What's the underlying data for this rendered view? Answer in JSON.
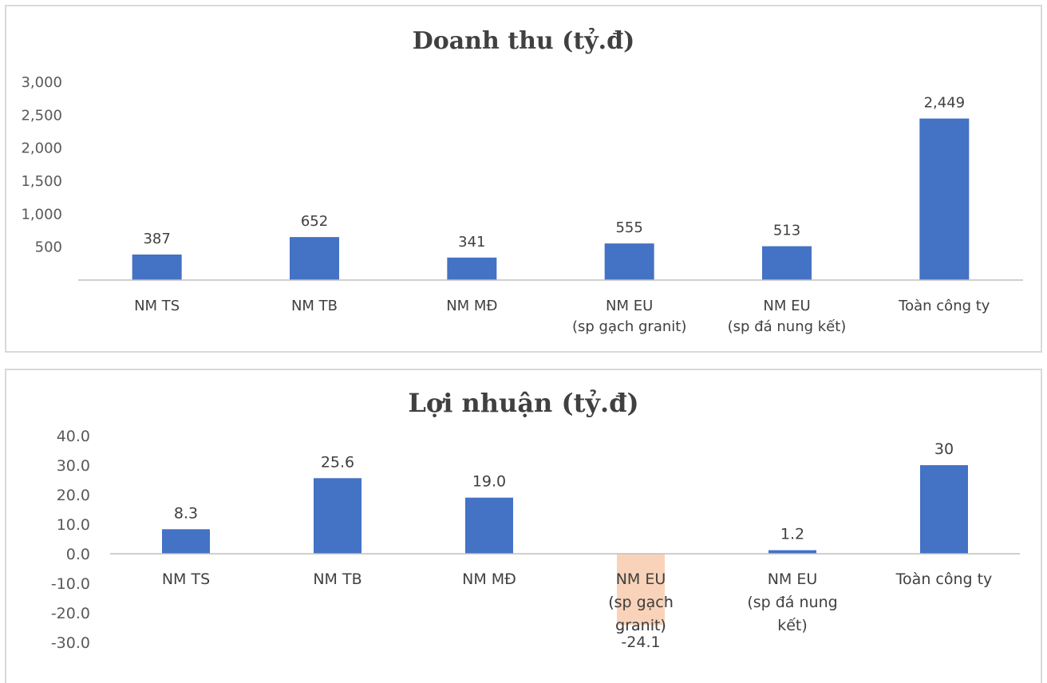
{
  "chart_data": [
    {
      "type": "bar",
      "title": "Doanh thu (tỷ.đ)",
      "categories": [
        [
          "NM TS"
        ],
        [
          "NM TB"
        ],
        [
          "NM MĐ"
        ],
        [
          "NM EU",
          "(sp gạch granit)"
        ],
        [
          "NM EU",
          "(sp đá nung kết)"
        ],
        [
          "Toàn công ty"
        ]
      ],
      "values": [
        387,
        652,
        341,
        555,
        513,
        2449
      ],
      "data_labels": [
        "387",
        "652",
        "341",
        "555",
        "513",
        "2,449"
      ],
      "ylim": [
        0,
        3000
      ],
      "yticks": [
        {
          "value": 3000,
          "label": "3,000"
        },
        {
          "value": 2500,
          "label": "2,500"
        },
        {
          "value": 2000,
          "label": "2,000"
        },
        {
          "value": 1500,
          "label": "1,500"
        },
        {
          "value": 1000,
          "label": "1,000"
        },
        {
          "value": 500,
          "label": "500"
        }
      ],
      "bar_colors": [
        "#4472C4",
        "#4472C4",
        "#4472C4",
        "#4472C4",
        "#4472C4",
        "#4472C4"
      ],
      "grid": false,
      "legend": "none"
    },
    {
      "type": "bar",
      "title": "Lợi nhuận (tỷ.đ)",
      "categories": [
        [
          "NM TS"
        ],
        [
          "NM TB"
        ],
        [
          "NM MĐ"
        ],
        [
          "NM EU",
          "(sp gạch",
          "granit)"
        ],
        [
          "NM EU",
          "(sp đá nung",
          "kết)"
        ],
        [
          "Toàn công ty"
        ]
      ],
      "values": [
        8.3,
        25.6,
        19.0,
        -24.1,
        1.2,
        30
      ],
      "data_labels": [
        "8.3",
        "25.6",
        "19.0",
        "-24.1",
        "1.2",
        "30"
      ],
      "ylim": [
        -30,
        40
      ],
      "yticks": [
        {
          "value": 40,
          "label": "40.0"
        },
        {
          "value": 30,
          "label": "30.0"
        },
        {
          "value": 20,
          "label": "20.0"
        },
        {
          "value": 10,
          "label": "10.0"
        },
        {
          "value": 0,
          "label": "0.0"
        },
        {
          "value": -10,
          "label": "-10.0"
        },
        {
          "value": -20,
          "label": "-20.0"
        },
        {
          "value": -30,
          "label": "-30.0"
        }
      ],
      "bar_colors": [
        "#4472C4",
        "#4472C4",
        "#4472C4",
        "#F8CBAD",
        "#4472C4",
        "#4472C4"
      ],
      "grid": false,
      "legend": "none"
    }
  ]
}
